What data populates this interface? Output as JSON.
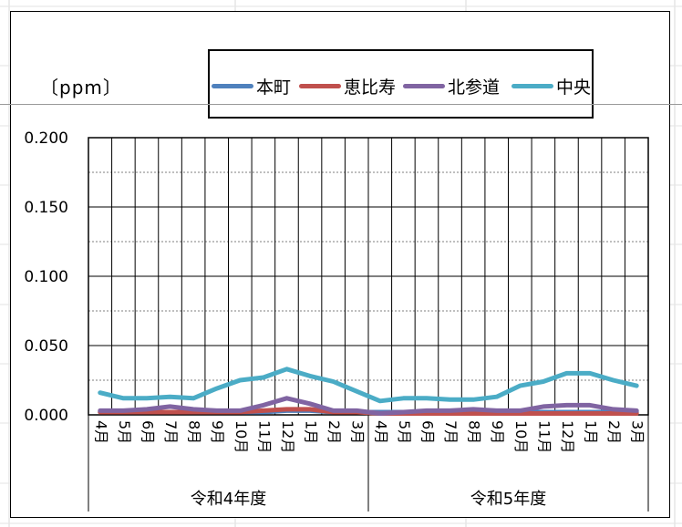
{
  "chart_data": {
    "type": "line",
    "unit_label": "〔ppm〕",
    "ylim": [
      0,
      0.2
    ],
    "y_ticks": [
      "0.000",
      "0.050",
      "0.100",
      "0.150",
      "0.200"
    ],
    "categories": [
      "4月",
      "5月",
      "6月",
      "7月",
      "8月",
      "9月",
      "10月",
      "11月",
      "12月",
      "1月",
      "2月",
      "3月",
      "4月",
      "5月",
      "6月",
      "7月",
      "8月",
      "9月",
      "10月",
      "11月",
      "12月",
      "1月",
      "2月",
      "3月"
    ],
    "groups": [
      {
        "label": "令和4年度",
        "count": 12
      },
      {
        "label": "令和5年度",
        "count": 12
      }
    ],
    "grid": true,
    "legend_position": "top",
    "series": [
      {
        "name": "本町",
        "color": "#4f81bd",
        "values": [
          0.002,
          0.002,
          0.002,
          0.002,
          0.002,
          0.002,
          0.002,
          0.002,
          0.003,
          0.003,
          0.002,
          0.002,
          0.002,
          0.002,
          0.002,
          0.002,
          0.002,
          0.002,
          0.002,
          0.002,
          0.002,
          0.002,
          0.002,
          0.002
        ]
      },
      {
        "name": "恵比寿",
        "color": "#c0504d",
        "values": [
          0.002,
          0.002,
          0.002,
          0.002,
          0.002,
          0.002,
          0.002,
          0.003,
          0.004,
          0.004,
          0.002,
          0.002,
          0.001,
          0.001,
          0.001,
          0.001,
          0.001,
          0.001,
          0.001,
          0.001,
          0.001,
          0.001,
          0.001,
          0.001
        ]
      },
      {
        "name": "北参道",
        "color": "#8064a2",
        "values": [
          0.003,
          0.003,
          0.004,
          0.006,
          0.004,
          0.003,
          0.003,
          0.007,
          0.012,
          0.008,
          0.003,
          0.003,
          0.001,
          0.002,
          0.003,
          0.003,
          0.004,
          0.003,
          0.003,
          0.006,
          0.007,
          0.007,
          0.004,
          0.003
        ]
      },
      {
        "name": "中央",
        "color": "#4bacc6",
        "values": [
          0.016,
          0.012,
          0.012,
          0.013,
          0.012,
          0.019,
          0.025,
          0.027,
          0.033,
          0.028,
          0.024,
          0.017,
          0.01,
          0.012,
          0.012,
          0.011,
          0.011,
          0.013,
          0.021,
          0.024,
          0.03,
          0.03,
          0.025,
          0.021
        ]
      }
    ]
  }
}
